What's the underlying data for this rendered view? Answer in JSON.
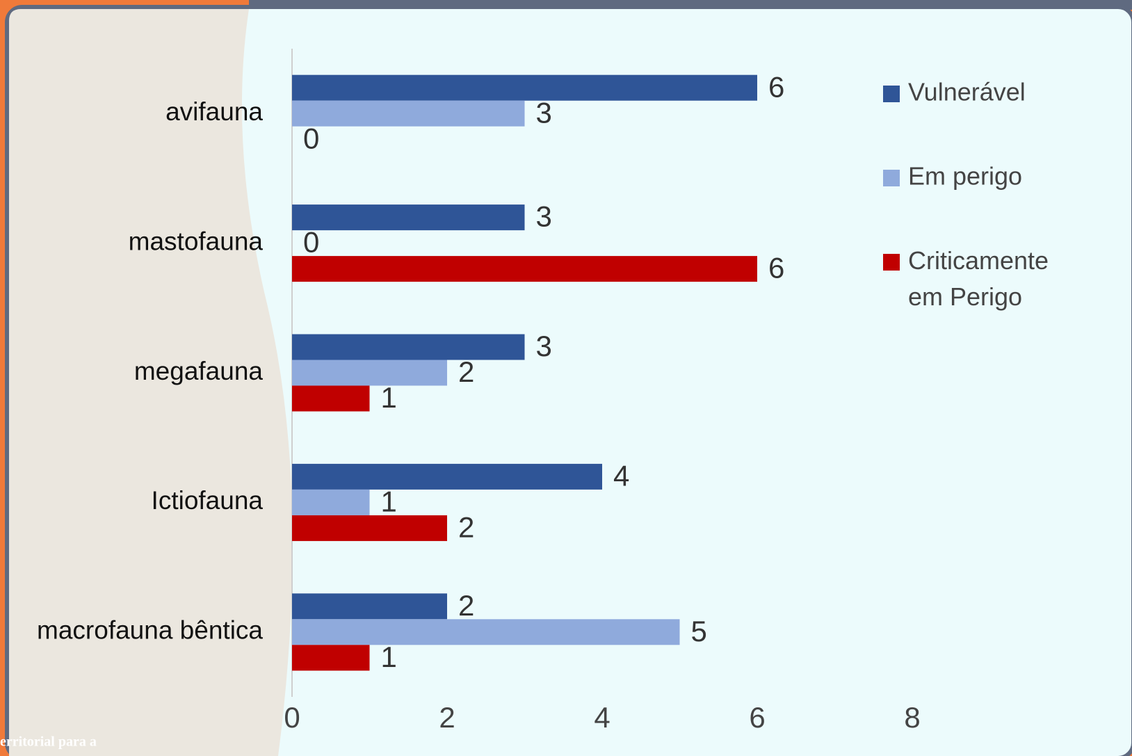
{
  "chart_data": {
    "type": "bar",
    "orientation": "horizontal",
    "categories": [
      "avifauna",
      "mastofauna",
      "megafauna",
      "Ictiofauna",
      "macrofauna bêntica"
    ],
    "series": [
      {
        "name": "Vulnerável",
        "color": "#2f5597",
        "values": [
          6,
          3,
          3,
          4,
          2
        ]
      },
      {
        "name": "Em perigo",
        "color": "#8faadc",
        "values": [
          3,
          0,
          2,
          1,
          5
        ]
      },
      {
        "name": "Criticamente em Perigo",
        "color": "#c00000",
        "values": [
          0,
          6,
          1,
          2,
          1
        ]
      }
    ],
    "xlim": [
      0,
      8
    ],
    "xticks": [
      0,
      2,
      4,
      6,
      8
    ],
    "legend": "right",
    "grid": false
  },
  "background_text": "erritorial para a"
}
